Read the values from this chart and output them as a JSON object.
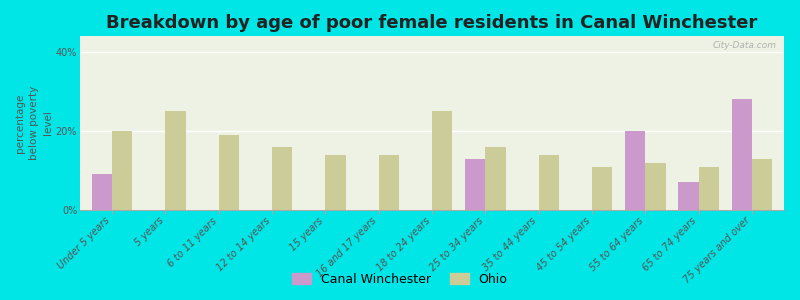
{
  "title": "Breakdown by age of poor female residents in Canal Winchester",
  "categories": [
    "Under 5 years",
    "5 years",
    "6 to 11 years",
    "12 to 14 years",
    "15 years",
    "16 and 17 years",
    "18 to 24 years",
    "25 to 34 years",
    "35 to 44 years",
    "45 to 54 years",
    "55 to 64 years",
    "65 to 74 years",
    "75 years and over"
  ],
  "canal_winchester": [
    9,
    0,
    0,
    0,
    0,
    0,
    0,
    13,
    0,
    0,
    20,
    7,
    28
  ],
  "ohio": [
    20,
    25,
    19,
    16,
    14,
    14,
    25,
    16,
    14,
    11,
    12,
    11,
    13
  ],
  "canal_color": "#cc99cc",
  "ohio_color": "#cccc99",
  "background_outer": "#00e5e5",
  "background_plot": "#eef2e4",
  "ylabel": "percentage\nbelow poverty\nlevel",
  "ylim": [
    0,
    44
  ],
  "yticks": [
    0,
    20,
    40
  ],
  "ytick_labels": [
    "0%",
    "20%",
    "40%"
  ],
  "bar_width": 0.38,
  "title_fontsize": 13,
  "axis_fontsize": 7.5,
  "tick_fontsize": 7.0,
  "legend_fontsize": 9,
  "watermark": "City-Data.com"
}
